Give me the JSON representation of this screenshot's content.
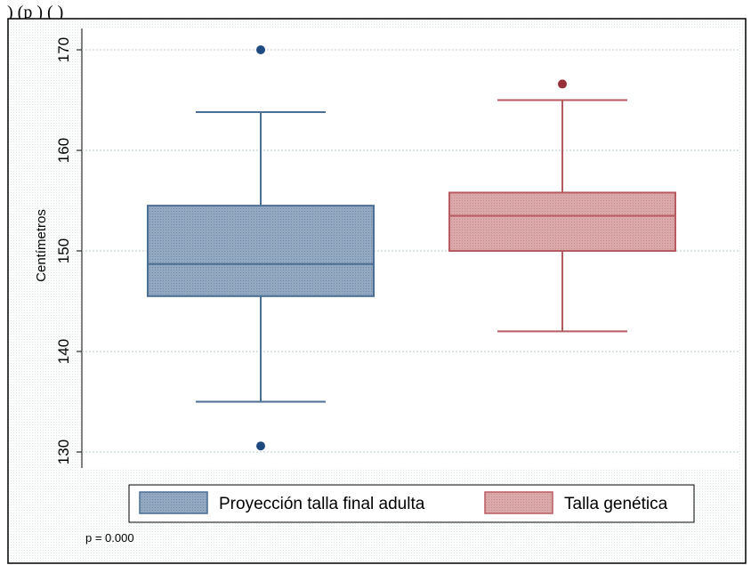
{
  "caption_fragment": ") (p    ) (        )",
  "chart_data": {
    "type": "box",
    "ylabel": "Centímetros",
    "ylim": [
      128,
      172
    ],
    "yticks": [
      130,
      140,
      150,
      160,
      170
    ],
    "grid": true,
    "legend_position": "bottom",
    "note": "p = 0.000",
    "series": [
      {
        "name": "Proyección talla final adulta",
        "color": "#4a6e94",
        "fill": "#8aa2bd",
        "whisker_low": 135,
        "q1": 145.5,
        "median": 148.7,
        "q3": 154.5,
        "whisker_high": 163.8,
        "outliers": [
          170,
          130.6
        ]
      },
      {
        "name": "Talla genética",
        "color": "#b85a62",
        "fill": "#d9a2a3",
        "whisker_low": 142,
        "q1": 150,
        "median": 153.5,
        "q3": 155.8,
        "whisker_high": 165,
        "outliers": [
          166.6
        ]
      }
    ]
  }
}
